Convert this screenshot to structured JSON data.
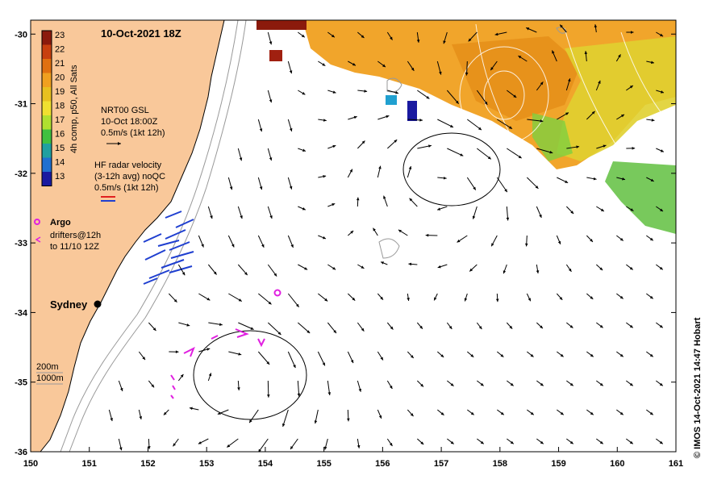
{
  "map": {
    "title": "10-Oct-2021 18Z",
    "lon_ticks": [
      "150",
      "151",
      "152",
      "153",
      "154",
      "155",
      "156",
      "157",
      "158",
      "159",
      "160",
      "161"
    ],
    "lat_ticks": [
      "-30",
      "-31",
      "-32",
      "-33",
      "-34",
      "-35",
      "-36"
    ],
    "lon_range": [
      150,
      161
    ],
    "lat_range": [
      -36,
      -29.8
    ]
  },
  "colorbar": {
    "ticks": [
      "23",
      "22",
      "21",
      "20",
      "19",
      "18",
      "17",
      "16",
      "15",
      "14",
      "13"
    ],
    "label": "4h comp, p50, All Sats",
    "colors": [
      "#8b1a0c",
      "#c8400f",
      "#e07010",
      "#f0a020",
      "#e8c020",
      "#f0e030",
      "#b0e030",
      "#40c040",
      "#20a0a0",
      "#2070d0",
      "#1a1aa0"
    ]
  },
  "legend": {
    "gsl_line1": "NRT00 GSL",
    "gsl_line2": "10-Oct 18:00Z",
    "gsl_line3": "0.5m/s (1kt 12h)",
    "hf_line1": "HF radar velocity",
    "hf_line2": "(3-12h avg) noQC",
    "hf_line3": "0.5m/s (1kt 12h)",
    "argo": "Argo",
    "drifters_line1": "drifters@12h",
    "drifters_line2": "to 11/10 12Z",
    "depth_200": "200m",
    "depth_1000": "1000m"
  },
  "places": {
    "sydney": "Sydney"
  },
  "credit": "© IMOS 14-Oct-2021 14:47 Hobart",
  "colors": {
    "land": "#f9c89a",
    "sst_warm": "#f0a020",
    "sst_hot": "#8b1a0c",
    "sst_cool": "#b0e030",
    "hf_radar": "#1f3fd0",
    "argo": "#e020e0",
    "drifter": "#e020e0",
    "current_arrow": "#000000",
    "coastline": "#000000",
    "isobath": "#999999"
  }
}
